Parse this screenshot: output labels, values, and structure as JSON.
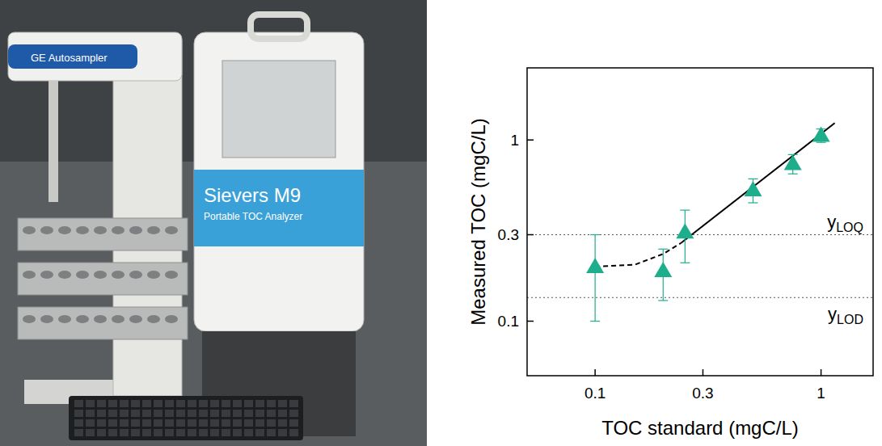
{
  "chart_data": {
    "type": "scatter",
    "x_label": "TOC standard (mgC/L)",
    "y_label": "Measured TOC (mgC/L)",
    "log": true,
    "x": [
      0.1,
      0.2,
      0.25,
      0.5,
      0.75,
      1
    ],
    "series": [
      {
        "color": "#1fae8c",
        "marker": "triangle",
        "values": [
          0.2,
          0.19,
          0.31,
          0.53,
          0.74,
          1.06
        ],
        "errors": [
          0.1,
          0.06,
          0.1,
          0.08,
          0.09,
          0.09
        ]
      }
    ],
    "fit_line": {
      "x": [
        0.24,
        1.15
      ],
      "y": [
        0.27,
        1.24
      ],
      "color": "#000000",
      "line_style": "solid"
    },
    "low_range_curve": {
      "x": [
        0.1,
        0.15,
        0.2,
        0.24
      ],
      "y": [
        0.2,
        0.205,
        0.235,
        0.27
      ],
      "color": "#000000",
      "line_style": "dashed"
    },
    "reference_lines": [
      {
        "value": 0.3,
        "label": "y",
        "subscript": "LOQ",
        "line_style": "dotted"
      },
      {
        "value": 0.135,
        "label": "y",
        "subscript": "LOD",
        "line_style": "dotted"
      }
    ],
    "xlim": [
      0.05,
      1.7
    ],
    "ylim": [
      0.05,
      2.5
    ],
    "xticks": [
      0.1,
      0.3,
      1
    ],
    "yticks": [
      0.1,
      0.3,
      1
    ]
  },
  "photo": {
    "labels": [
      "GE Autosampler",
      "Sievers M9",
      "Portable TOC Analyzer"
    ]
  }
}
